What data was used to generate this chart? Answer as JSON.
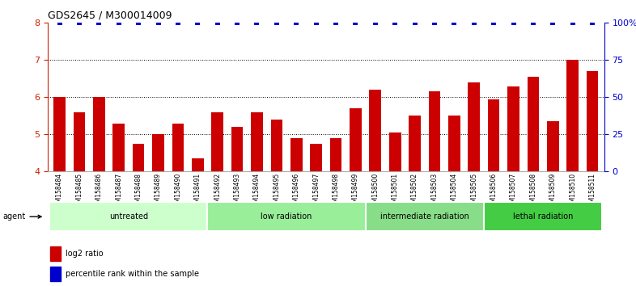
{
  "title": "GDS2645 / M300014009",
  "samples": [
    "GSM158484",
    "GSM158485",
    "GSM158486",
    "GSM158487",
    "GSM158488",
    "GSM158489",
    "GSM158490",
    "GSM158491",
    "GSM158492",
    "GSM158493",
    "GSM158494",
    "GSM158495",
    "GSM158496",
    "GSM158497",
    "GSM158498",
    "GSM158499",
    "GSM158500",
    "GSM158501",
    "GSM158502",
    "GSM158503",
    "GSM158504",
    "GSM158505",
    "GSM158506",
    "GSM158507",
    "GSM158508",
    "GSM158509",
    "GSM158510",
    "GSM158511"
  ],
  "log2_values": [
    6.0,
    5.6,
    6.0,
    5.3,
    4.75,
    5.0,
    5.3,
    4.35,
    5.6,
    5.2,
    5.6,
    5.4,
    4.9,
    4.75,
    4.9,
    5.7,
    6.2,
    5.05,
    5.5,
    6.15,
    5.5,
    6.4,
    5.95,
    6.3,
    6.55,
    5.35,
    7.0,
    6.7
  ],
  "percentile_values": [
    100,
    100,
    100,
    100,
    100,
    100,
    100,
    100,
    100,
    100,
    100,
    100,
    100,
    100,
    100,
    100,
    100,
    100,
    100,
    100,
    100,
    100,
    100,
    100,
    100,
    100,
    100,
    100
  ],
  "groups": [
    {
      "label": "untreated",
      "start": 0,
      "end": 8,
      "color": "#ccffcc"
    },
    {
      "label": "low radiation",
      "start": 8,
      "end": 16,
      "color": "#99ee99"
    },
    {
      "label": "intermediate radiation",
      "start": 16,
      "end": 22,
      "color": "#88dd88"
    },
    {
      "label": "lethal radiation",
      "start": 22,
      "end": 28,
      "color": "#44cc44"
    }
  ],
  "bar_color": "#cc0000",
  "percentile_color": "#0000cc",
  "ylim_left": [
    4,
    8
  ],
  "ylim_right": [
    0,
    100
  ],
  "yticks_left": [
    4,
    5,
    6,
    7,
    8
  ],
  "yticks_right": [
    0,
    25,
    50,
    75,
    100
  ],
  "ytick_labels_right": [
    "0",
    "25",
    "50",
    "75",
    "100%"
  ],
  "grid_values": [
    5,
    6,
    7
  ],
  "left_axis_color": "#cc2200",
  "right_axis_color": "#0000cc",
  "legend_red_label": "log2 ratio",
  "legend_blue_label": "percentile rank within the sample",
  "agent_label": "agent",
  "plot_bg_color": "#ffffff"
}
